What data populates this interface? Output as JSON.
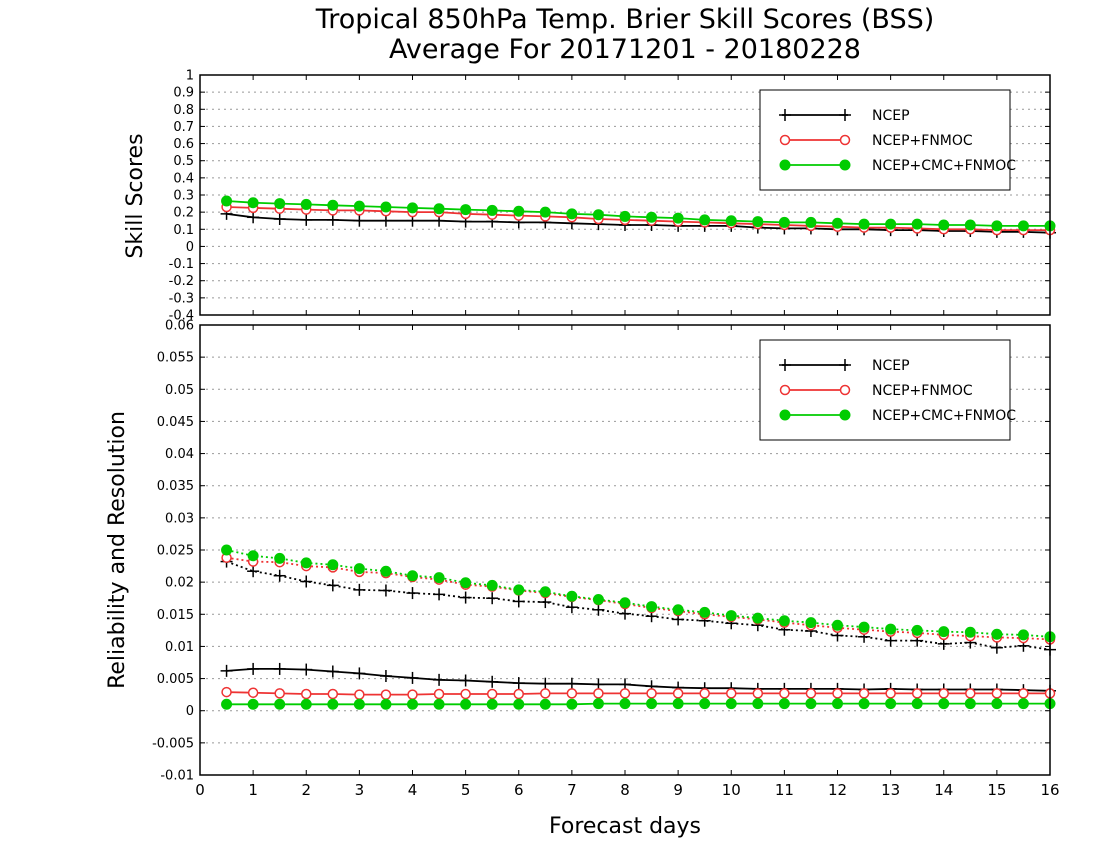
{
  "title_line1": "Tropical 850hPa Temp. Brier Skill Scores (BSS)",
  "title_line2": "Average For 20171201 - 20180228",
  "xlabel": "Forecast days",
  "colors": {
    "ncep": "#000000",
    "ncep_fnmoc": "#ee3333",
    "ncep_cmc_fnmoc": "#00cc00",
    "grid": "#999999"
  },
  "chart_data": [
    {
      "type": "line",
      "ylabel": "Skill Scores",
      "xlim": [
        0,
        16
      ],
      "ylim": [
        -0.4,
        1
      ],
      "x_ticks": [
        "0",
        "1",
        "2",
        "3",
        "4",
        "5",
        "6",
        "7",
        "8",
        "9",
        "10",
        "11",
        "12",
        "13",
        "14",
        "15",
        "16"
      ],
      "y_ticks": [
        "1",
        "0.9",
        "0.8",
        "0.7",
        "0.6",
        "0.5",
        "0.4",
        "0.3",
        "0.2",
        "0.1",
        "0",
        "-0.1",
        "-0.2",
        "-0.3",
        "-0.4"
      ],
      "x_tick_labels_shown": false,
      "grid": "horizontal-dotted",
      "legend_position": "top-right",
      "legend": [
        "NCEP",
        "NCEP+FNMOC",
        "NCEP+CMC+FNMOC"
      ],
      "x": [
        0.5,
        1,
        1.5,
        2,
        2.5,
        3,
        3.5,
        4,
        4.5,
        5,
        5.5,
        6,
        6.5,
        7,
        7.5,
        8,
        8.5,
        9,
        9.5,
        10,
        10.5,
        11,
        11.5,
        12,
        12.5,
        13,
        13.5,
        14,
        14.5,
        15,
        15.5,
        16
      ],
      "series": [
        {
          "name": "NCEP",
          "style": "plus",
          "color": "#000000",
          "values": [
            0.19,
            0.17,
            0.16,
            0.155,
            0.155,
            0.15,
            0.15,
            0.15,
            0.15,
            0.145,
            0.145,
            0.14,
            0.14,
            0.135,
            0.13,
            0.125,
            0.125,
            0.12,
            0.12,
            0.12,
            0.11,
            0.105,
            0.105,
            0.1,
            0.1,
            0.095,
            0.095,
            0.09,
            0.09,
            0.085,
            0.085,
            0.08
          ]
        },
        {
          "name": "NCEP+FNMOC",
          "style": "open-circle",
          "color": "#ee3333",
          "values": [
            0.23,
            0.225,
            0.22,
            0.215,
            0.21,
            0.21,
            0.205,
            0.2,
            0.2,
            0.19,
            0.185,
            0.18,
            0.175,
            0.17,
            0.16,
            0.155,
            0.15,
            0.145,
            0.14,
            0.135,
            0.13,
            0.125,
            0.12,
            0.115,
            0.11,
            0.11,
            0.105,
            0.1,
            0.1,
            0.095,
            0.095,
            0.095
          ]
        },
        {
          "name": "NCEP+CMC+FNMOC",
          "style": "filled-circle",
          "color": "#00cc00",
          "values": [
            0.265,
            0.255,
            0.25,
            0.245,
            0.24,
            0.235,
            0.23,
            0.225,
            0.22,
            0.215,
            0.21,
            0.205,
            0.2,
            0.19,
            0.185,
            0.175,
            0.17,
            0.165,
            0.155,
            0.15,
            0.145,
            0.14,
            0.14,
            0.135,
            0.13,
            0.13,
            0.13,
            0.125,
            0.125,
            0.12,
            0.12,
            0.12
          ]
        }
      ]
    },
    {
      "type": "line",
      "ylabel": "Reliability and Resolution",
      "xlim": [
        0,
        16
      ],
      "ylim": [
        -0.01,
        0.06
      ],
      "x_ticks": [
        "0",
        "1",
        "2",
        "3",
        "4",
        "5",
        "6",
        "7",
        "8",
        "9",
        "10",
        "11",
        "12",
        "13",
        "14",
        "15",
        "16"
      ],
      "y_ticks": [
        "0.06",
        "0.055",
        "0.05",
        "0.045",
        "0.04",
        "0.035",
        "0.03",
        "0.025",
        "0.02",
        "0.015",
        "0.01",
        "0.005",
        "0",
        "-0.005",
        "-0.01"
      ],
      "grid": "horizontal-dotted",
      "legend_position": "top-right",
      "legend": [
        "NCEP",
        "NCEP+FNMOC",
        "NCEP+CMC+FNMOC"
      ],
      "x": [
        0.5,
        1,
        1.5,
        2,
        2.5,
        3,
        3.5,
        4,
        4.5,
        5,
        5.5,
        6,
        6.5,
        7,
        7.5,
        8,
        8.5,
        9,
        9.5,
        10,
        10.5,
        11,
        11.5,
        12,
        12.5,
        13,
        13.5,
        14,
        14.5,
        15,
        15.5,
        16
      ],
      "series": [
        {
          "name": "NCEP",
          "line": "dotted",
          "style": "plus",
          "color": "#000000",
          "values": [
            0.0232,
            0.0217,
            0.021,
            0.0201,
            0.0195,
            0.0188,
            0.0187,
            0.0183,
            0.0181,
            0.0176,
            0.0175,
            0.017,
            0.0169,
            0.0161,
            0.0157,
            0.0151,
            0.0147,
            0.0142,
            0.014,
            0.0136,
            0.0133,
            0.0126,
            0.0124,
            0.0117,
            0.0115,
            0.0109,
            0.0109,
            0.0104,
            0.0106,
            0.0098,
            0.0101,
            0.0095
          ]
        },
        {
          "name": "NCEP+FNMOC",
          "line": "dotted",
          "style": "open-circle",
          "color": "#ee3333",
          "values": [
            0.0238,
            0.0232,
            0.0231,
            0.0225,
            0.0223,
            0.0216,
            0.0214,
            0.0208,
            0.0204,
            0.0196,
            0.0193,
            0.0187,
            0.0183,
            0.0177,
            0.0172,
            0.0166,
            0.016,
            0.0155,
            0.015,
            0.0146,
            0.0142,
            0.0137,
            0.0133,
            0.0129,
            0.0126,
            0.0123,
            0.0121,
            0.0118,
            0.0116,
            0.0114,
            0.0113,
            0.0111
          ]
        },
        {
          "name": "NCEP+CMC+FNMOC",
          "line": "dotted",
          "style": "filled-circle",
          "color": "#00cc00",
          "values": [
            0.025,
            0.0241,
            0.0237,
            0.023,
            0.0227,
            0.0221,
            0.0217,
            0.021,
            0.0207,
            0.0199,
            0.0195,
            0.0188,
            0.0185,
            0.0178,
            0.0173,
            0.0168,
            0.0162,
            0.0157,
            0.0153,
            0.0148,
            0.0144,
            0.014,
            0.0137,
            0.0133,
            0.013,
            0.0127,
            0.0125,
            0.0123,
            0.0122,
            0.0119,
            0.0118,
            0.0115
          ]
        },
        {
          "name": "NCEP",
          "line": "solid",
          "style": "plus",
          "color": "#000000",
          "values": [
            0.0062,
            0.0065,
            0.0065,
            0.0064,
            0.0061,
            0.0058,
            0.0054,
            0.0051,
            0.0048,
            0.0047,
            0.0045,
            0.0043,
            0.0042,
            0.0042,
            0.0041,
            0.0041,
            0.0038,
            0.0036,
            0.0035,
            0.0035,
            0.0034,
            0.0034,
            0.0034,
            0.0034,
            0.0033,
            0.0034,
            0.0033,
            0.0033,
            0.0033,
            0.0033,
            0.0032,
            0.0031
          ]
        },
        {
          "name": "NCEP+FNMOC",
          "line": "solid",
          "style": "open-circle",
          "color": "#ee3333",
          "values": [
            0.0029,
            0.0028,
            0.0027,
            0.0026,
            0.0026,
            0.0025,
            0.0025,
            0.0025,
            0.0026,
            0.0026,
            0.0026,
            0.0026,
            0.0027,
            0.0027,
            0.0027,
            0.0027,
            0.0027,
            0.0027,
            0.0027,
            0.0027,
            0.0027,
            0.0027,
            0.0027,
            0.0027,
            0.0027,
            0.0027,
            0.0027,
            0.0027,
            0.0027,
            0.0027,
            0.0027,
            0.0027
          ]
        },
        {
          "name": "NCEP+CMC+FNMOC",
          "line": "solid",
          "style": "filled-circle",
          "color": "#00cc00",
          "values": [
            0.001,
            0.001,
            0.001,
            0.001,
            0.001,
            0.001,
            0.001,
            0.001,
            0.001,
            0.001,
            0.001,
            0.001,
            0.001,
            0.001,
            0.0011,
            0.0011,
            0.0011,
            0.0011,
            0.0011,
            0.0011,
            0.0011,
            0.0011,
            0.0011,
            0.0011,
            0.0011,
            0.0011,
            0.0011,
            0.0011,
            0.0011,
            0.0011,
            0.0011,
            0.0011
          ]
        }
      ]
    }
  ]
}
